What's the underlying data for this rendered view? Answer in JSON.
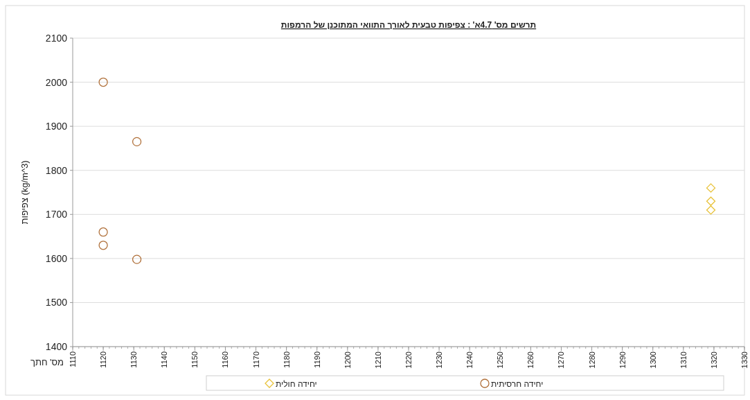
{
  "chart_data": {
    "type": "scatter",
    "title": "תרשים מס' 4.7א' : צפיפות טבעית לאורך התוואי המתוכנן של הרמפות",
    "xlabel": "מס' חתך",
    "ylabel": "צפיפות (kg/m^3)",
    "series": [
      {
        "name": "יחידה חרסיתית",
        "color": "#b0703a",
        "marker": "circle",
        "x": [
          1120,
          1131,
          1120,
          1120,
          1131
        ],
        "values": [
          2000,
          1865,
          1660,
          1630,
          1598
        ]
      },
      {
        "name": "יחידה חולית",
        "color": "#e8c23a",
        "marker": "diamond",
        "x": [
          1319,
          1319,
          1319
        ],
        "values": [
          1760,
          1730,
          1710
        ]
      }
    ],
    "xlim": [
      1110,
      1330
    ],
    "xticks": [
      1110,
      1120,
      1130,
      1140,
      1150,
      1160,
      1170,
      1180,
      1190,
      1200,
      1210,
      1220,
      1230,
      1240,
      1250,
      1260,
      1270,
      1280,
      1290,
      1300,
      1310,
      1320,
      1330
    ],
    "ylim": [
      1400,
      2100
    ],
    "yticks": [
      1400,
      1500,
      1600,
      1700,
      1800,
      1900,
      2000,
      2100
    ],
    "grid": "y",
    "legend": "bottom"
  }
}
